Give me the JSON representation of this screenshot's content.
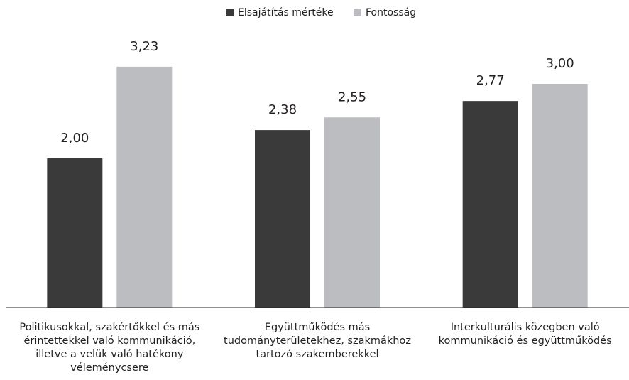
{
  "chart_data": {
    "type": "bar",
    "categories": [
      "Politikusokkal, szakértőkkel és más érintettekkel való kommunikáció, illetve a velük való hatékony véleménycsere",
      "Együttműködés más tudományterületekhez, szakmákhoz tartozó szakemberekkel",
      "Interkulturális közegben való kommunikáció és együttműködés"
    ],
    "series": [
      {
        "name": "Elsajátítás mértéke",
        "color": "#3a3a3b",
        "values": [
          2.0,
          2.38,
          2.77
        ],
        "value_labels": [
          "2,00",
          "2,38",
          "2,77"
        ]
      },
      {
        "name": "Fontosság",
        "color": "#bcbdc0",
        "values": [
          3.23,
          2.55,
          3.0
        ],
        "value_labels": [
          "3,23",
          "2,55",
          "3,00"
        ]
      }
    ],
    "ylim": [
      0,
      4
    ],
    "legend": "top"
  }
}
